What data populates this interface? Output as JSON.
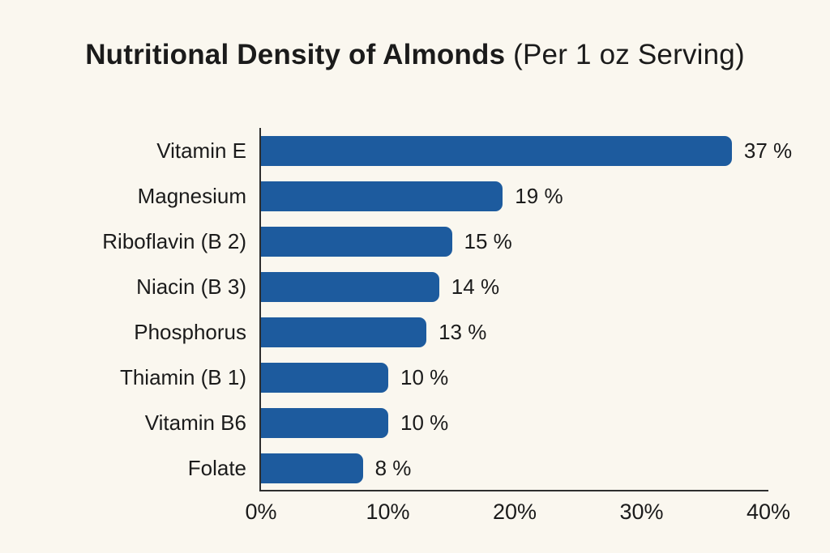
{
  "chart_data": {
    "type": "bar",
    "orientation": "horizontal",
    "title": "Nutritional Density of Almonds (Per 1 oz Serving)",
    "title_main": "Nutritional Density of Almonds",
    "title_paren": " (Per 1 oz Serving)",
    "categories": [
      "Vitamin E",
      "Magnesium",
      "Riboflavin (B 2)",
      "Niacin (B 3)",
      "Phosphorus",
      "Thiamin (B 1)",
      "Vitamin B6",
      "Folate"
    ],
    "values": [
      37,
      19,
      15,
      14,
      13,
      10,
      10,
      8
    ],
    "value_labels": [
      "37 %",
      "19 %",
      "15 %",
      "14 %",
      "13 %",
      "10 %",
      "10 %",
      "8 %"
    ],
    "x_ticks": [
      "0%",
      "10%",
      "20%",
      "30%",
      "40%"
    ],
    "xlim": [
      0,
      40
    ],
    "grid": false,
    "legend": false,
    "bar_color": "#1d5b9e",
    "background_color": "#faf7ef",
    "text_color": "#1b1b1b",
    "axis_color": "#2e2e2e"
  }
}
